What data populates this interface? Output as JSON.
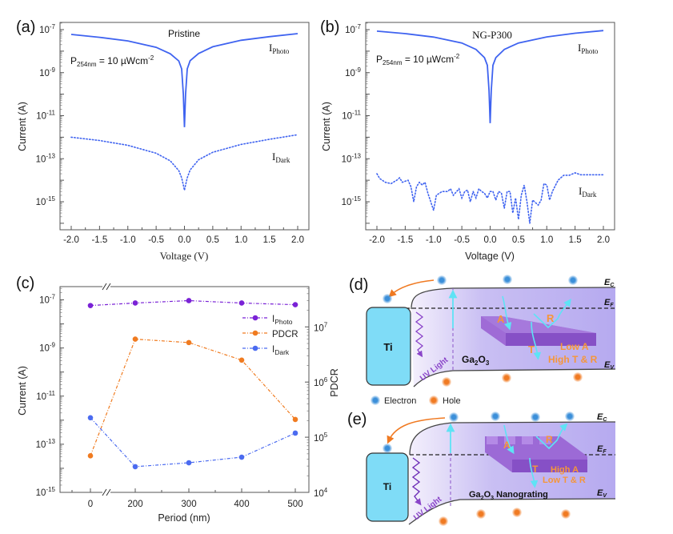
{
  "figure": {
    "panels": {
      "a": "(a)",
      "b": "(b)",
      "c": "(c)",
      "d": "(d)",
      "e": "(e)"
    }
  },
  "chart_data": [
    {
      "id": "a",
      "type": "line",
      "title": "Pristine",
      "annotation": {
        "main": "P",
        "sub": "254nm",
        "rest": " = 10 µWcm",
        "sup": "-2"
      },
      "xlabel": "Voltage (V)",
      "ylabel": "Current (A)",
      "xlim": [
        -2.2,
        2.2
      ],
      "ylim_log10": [
        -16.3,
        -6.65
      ],
      "xticks": [
        "-2.0",
        "-1.5",
        "-1.0",
        "-0.5",
        "0.0",
        "0.5",
        "1.0",
        "1.5",
        "2.0"
      ],
      "yticks": [
        {
          "base": "10",
          "exp": "-7"
        },
        {
          "base": "10",
          "exp": "-9"
        },
        {
          "base": "10",
          "exp": "-11"
        },
        {
          "base": "10",
          "exp": "-13"
        },
        {
          "base": "10",
          "exp": "-15"
        }
      ],
      "color": "#3f63f0",
      "series": [
        {
          "name": "IPhoto",
          "label_main": "I",
          "label_sub": "Photo",
          "style": "solid",
          "x": [
            -2.0,
            -1.5,
            -1.0,
            -0.5,
            -0.25,
            -0.1,
            -0.05,
            -0.02,
            0.0,
            0.02,
            0.05,
            0.1,
            0.25,
            0.5,
            1.0,
            1.5,
            2.0
          ],
          "y": [
            6e-08,
            4.4e-08,
            3e-08,
            1.5e-08,
            7.5e-09,
            3.5e-09,
            1.5e-09,
            1e-10,
            2.9e-12,
            1e-10,
            1.5e-09,
            3.6e-09,
            7.8e-09,
            1.6e-08,
            3.2e-08,
            4.7e-08,
            6.5e-08
          ]
        },
        {
          "name": "IDark",
          "label_main": "I",
          "label_sub": "Dark",
          "style": "dotted",
          "x": [
            -2.0,
            -1.5,
            -1.0,
            -0.5,
            -0.25,
            -0.1,
            -0.05,
            -0.02,
            0.0,
            0.02,
            0.05,
            0.1,
            0.25,
            0.5,
            1.0,
            1.5,
            2.0
          ],
          "y": [
            1e-12,
            7e-13,
            4.2e-13,
            1.8e-13,
            8e-14,
            2.8e-14,
            1.3e-14,
            6e-15,
            3.4e-15,
            6e-15,
            1.3e-14,
            3e-14,
            9e-14,
            2e-13,
            4.6e-13,
            8e-13,
            1.3e-12
          ]
        }
      ]
    },
    {
      "id": "b",
      "type": "line",
      "title": "NG-P300",
      "annotation": {
        "main": "P",
        "sub": "254nm",
        "rest": " = 10 µWcm",
        "sup": "-2"
      },
      "xlabel": "Voltage (V)",
      "ylabel": "Current (A)",
      "xlim": [
        -2.2,
        2.2
      ],
      "ylim_log10": [
        -16.3,
        -6.65
      ],
      "xticks": [
        "-2.0",
        "-1.5",
        "-1.0",
        "-0.5",
        "0.0",
        "0.5",
        "1.0",
        "1.5",
        "2.0"
      ],
      "yticks": [
        {
          "base": "10",
          "exp": "-7"
        },
        {
          "base": "10",
          "exp": "-9"
        },
        {
          "base": "10",
          "exp": "-11"
        },
        {
          "base": "10",
          "exp": "-13"
        },
        {
          "base": "10",
          "exp": "-15"
        }
      ],
      "color": "#3f63f0",
      "series": [
        {
          "name": "IPhoto",
          "label_main": "I",
          "label_sub": "Photo",
          "style": "solid",
          "x": [
            -2.0,
            -1.5,
            -1.0,
            -0.5,
            -0.25,
            -0.1,
            -0.05,
            -0.02,
            0.0,
            0.02,
            0.05,
            0.1,
            0.25,
            0.5,
            1.0,
            1.5,
            2.0
          ],
          "y": [
            8.5e-08,
            6.5e-08,
            4.5e-08,
            2.4e-08,
            1.2e-08,
            5e-09,
            2.2e-09,
            1.5e-10,
            4.5e-12,
            1.5e-10,
            2.2e-09,
            5e-09,
            1.2e-08,
            2.4e-08,
            4.6e-08,
            6.8e-08,
            9e-08
          ]
        },
        {
          "name": "IDark",
          "label_main": "I",
          "label_sub": "Dark",
          "style": "dotted",
          "x": [
            -2.0,
            -1.95,
            -1.85,
            -1.75,
            -1.65,
            -1.6,
            -1.55,
            -1.45,
            -1.4,
            -1.35,
            -1.3,
            -1.25,
            -1.2,
            -1.15,
            -1.1,
            -1.0,
            -0.95,
            -0.85,
            -0.75,
            -0.7,
            -0.65,
            -0.55,
            -0.5,
            -0.45,
            -0.4,
            -0.35,
            -0.3,
            -0.25,
            -0.2,
            -0.15,
            -0.1,
            -0.05,
            0.0,
            0.05,
            0.1,
            0.15,
            0.2,
            0.25,
            0.3,
            0.35,
            0.4,
            0.45,
            0.5,
            0.55,
            0.6,
            0.65,
            0.7,
            0.75,
            0.85,
            0.9,
            0.95,
            1.0,
            1.05,
            1.1,
            1.2,
            1.3,
            1.4,
            1.5,
            1.6,
            1.7,
            1.8,
            2.0
          ],
          "y": [
            2e-14,
            1.2e-14,
            8e-15,
            7e-15,
            1e-14,
            1.3e-14,
            8e-15,
            1e-14,
            5e-15,
            1e-15,
            5e-15,
            8e-15,
            6e-15,
            8e-15,
            2.5e-15,
            4e-16,
            2e-15,
            3e-15,
            3e-15,
            4e-15,
            2e-15,
            4e-15,
            1.5e-15,
            3e-15,
            3.5e-15,
            1e-15,
            3e-15,
            1.5e-15,
            4e-15,
            3e-15,
            2.5e-15,
            1.5e-15,
            3e-15,
            3e-15,
            1.2e-15,
            3e-15,
            2.5e-15,
            5e-16,
            3e-15,
            3e-15,
            3e-16,
            1.5e-15,
            1.5e-16,
            2e-15,
            6e-15,
            1e-15,
            1e-16,
            1.2e-15,
            7e-16,
            1.2e-15,
            7e-15,
            6e-15,
            1.2e-15,
            3e-15,
            1e-14,
            1.7e-14,
            1.7e-14,
            2.2e-14,
            1.8e-14,
            1.8e-14,
            1.8e-14,
            1.8e-14
          ]
        }
      ]
    },
    {
      "id": "c",
      "type": "line",
      "xlabel": "Period (nm)",
      "ylabel": "Current (A)",
      "y2label": "PDCR",
      "categories": [
        0,
        200,
        300,
        400,
        500
      ],
      "xticks": [
        "0",
        "200",
        "300",
        "400",
        "500"
      ],
      "axis_break": "between 0 and 200",
      "ylim_log10": [
        -15,
        -6.45
      ],
      "y2lim_log10": [
        4,
        7.73
      ],
      "yticks": [
        {
          "base": "10",
          "exp": "-7"
        },
        {
          "base": "10",
          "exp": "-9"
        },
        {
          "base": "10",
          "exp": "-11"
        },
        {
          "base": "10",
          "exp": "-13"
        },
        {
          "base": "10",
          "exp": "-15"
        }
      ],
      "y2ticks": [
        {
          "base": "10",
          "exp": "7"
        },
        {
          "base": "10",
          "exp": "6"
        },
        {
          "base": "10",
          "exp": "5"
        },
        {
          "base": "10",
          "exp": "4"
        }
      ],
      "legend_position": "top-right",
      "series": [
        {
          "name": "IPhoto",
          "label_main": "I",
          "label_sub": "Photo",
          "axis": "left",
          "color": "#7a22d6",
          "values": [
            5.8e-08,
            7.4e-08,
            9.3e-08,
            7.4e-08,
            6.3e-08
          ]
        },
        {
          "name": "PDCR",
          "label_main": "PDCR",
          "label_sub": "",
          "axis": "right",
          "color": "#f07b20",
          "values": [
            46000.0,
            6000000.0,
            5200000.0,
            2500000.0,
            210000.0
          ]
        },
        {
          "name": "IDark",
          "label_main": "I",
          "label_sub": "Dark",
          "axis": "left",
          "color": "#4b6bf0",
          "values": [
            1.26e-12,
            1.17e-14,
            1.7e-14,
            2.9e-14,
            2.9e-13
          ]
        }
      ]
    }
  ],
  "diagrams": {
    "d": {
      "metal": "Ti",
      "semiconductor": "Ga2O3",
      "light_label": "UV Light",
      "process_labels": [
        "A",
        "R",
        "T"
      ],
      "effect_line1": "Low A",
      "effect_line2": "High T & R",
      "levels": {
        "ec": "E",
        "ec_sub": "C",
        "ef": "E",
        "ef_sub": "F",
        "ev": "E",
        "ev_sub": "V"
      }
    },
    "legend": {
      "electron": "Electron",
      "hole": "Hole"
    },
    "e": {
      "metal": "Ti",
      "semiconductor": "Ga2O3 Nanograting",
      "light_label": "UV Light",
      "process_labels": [
        "A",
        "R",
        "T"
      ],
      "effect_line1": "High A",
      "effect_line2": "Low T & R",
      "levels": {
        "ec": "E",
        "ec_sub": "C",
        "ef": "E",
        "ef_sub": "F",
        "ev": "E",
        "ev_sub": "V"
      }
    },
    "colors": {
      "ti": "#7fdcf7",
      "band_light": "#ece6fa",
      "band": "#b9aef0",
      "slab": "#8d5fd1",
      "electron": "#3b8fd9",
      "hole": "#f07a22",
      "arrow_cyan": "#5ee3f5",
      "orange_text": "#f5963a",
      "uv": "#8a45c9"
    }
  }
}
